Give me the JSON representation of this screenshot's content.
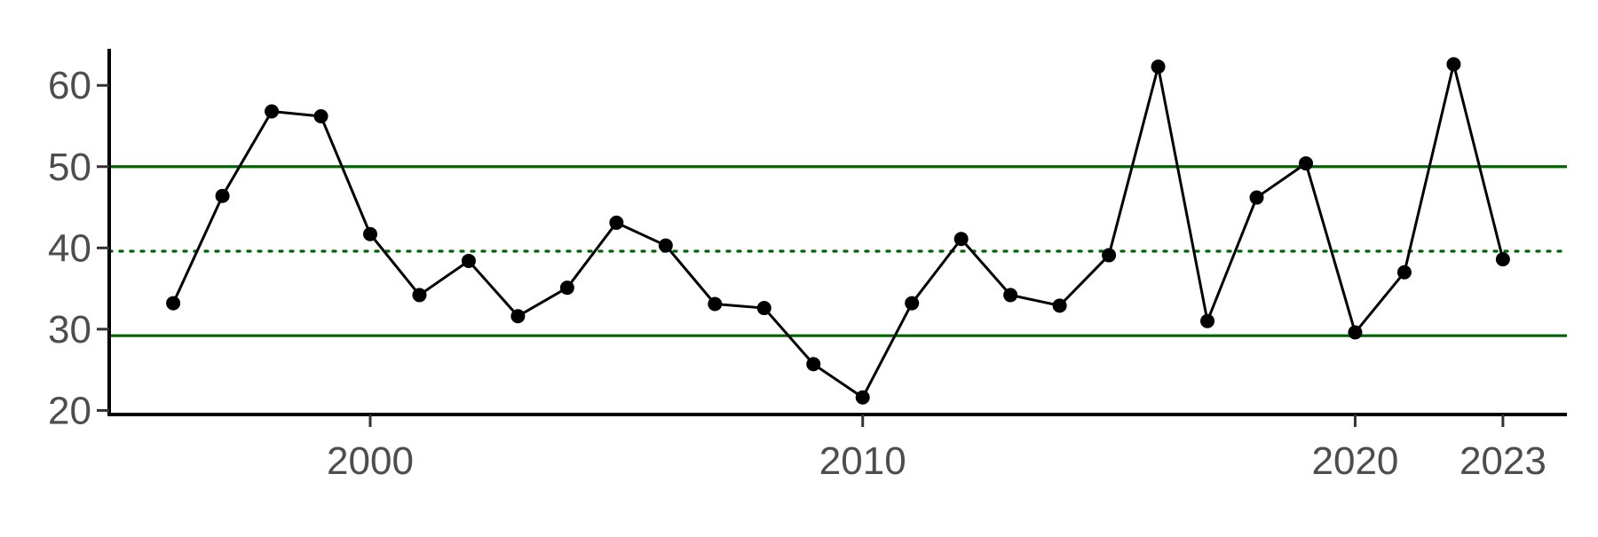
{
  "chart_data": {
    "type": "line",
    "title": "",
    "xlabel": "",
    "ylabel": "",
    "xlim": [
      1994.7,
      2024.3
    ],
    "ylim": [
      19.5,
      64.5
    ],
    "x_ticks": [
      2000,
      2010,
      2020,
      2023
    ],
    "y_ticks": [
      20,
      30,
      40,
      50,
      60
    ],
    "grid": false,
    "legend": "none",
    "series": [
      {
        "x": [
          1996,
          1997,
          1998,
          1999,
          2000,
          2001,
          2002,
          2003,
          2004,
          2005,
          2006,
          2007,
          2008,
          2009,
          2010,
          2011,
          2012,
          2013,
          2014,
          2015,
          2016,
          2017,
          2018,
          2019,
          2020,
          2021,
          2022,
          2023
        ],
        "y": [
          33.2,
          46.4,
          56.8,
          56.2,
          41.7,
          34.2,
          38.4,
          31.6,
          35.1,
          43.1,
          40.3,
          33.1,
          32.6,
          25.7,
          21.6,
          33.2,
          41.1,
          34.2,
          32.9,
          39.1,
          62.3,
          31.0,
          46.2,
          50.4,
          29.6,
          37.0,
          62.6,
          38.6
        ]
      }
    ],
    "reference_lines": [
      {
        "y": 50.0,
        "style": "solid",
        "color": "#006400"
      },
      {
        "y": 39.6,
        "style": "dotted",
        "color": "#006400"
      },
      {
        "y": 29.2,
        "style": "solid",
        "color": "#006400"
      }
    ],
    "colors": {
      "line": "#000000",
      "points": "#000000",
      "reference": "#006400",
      "axis": "#000000",
      "tick_label": "#4d4d4d"
    }
  }
}
